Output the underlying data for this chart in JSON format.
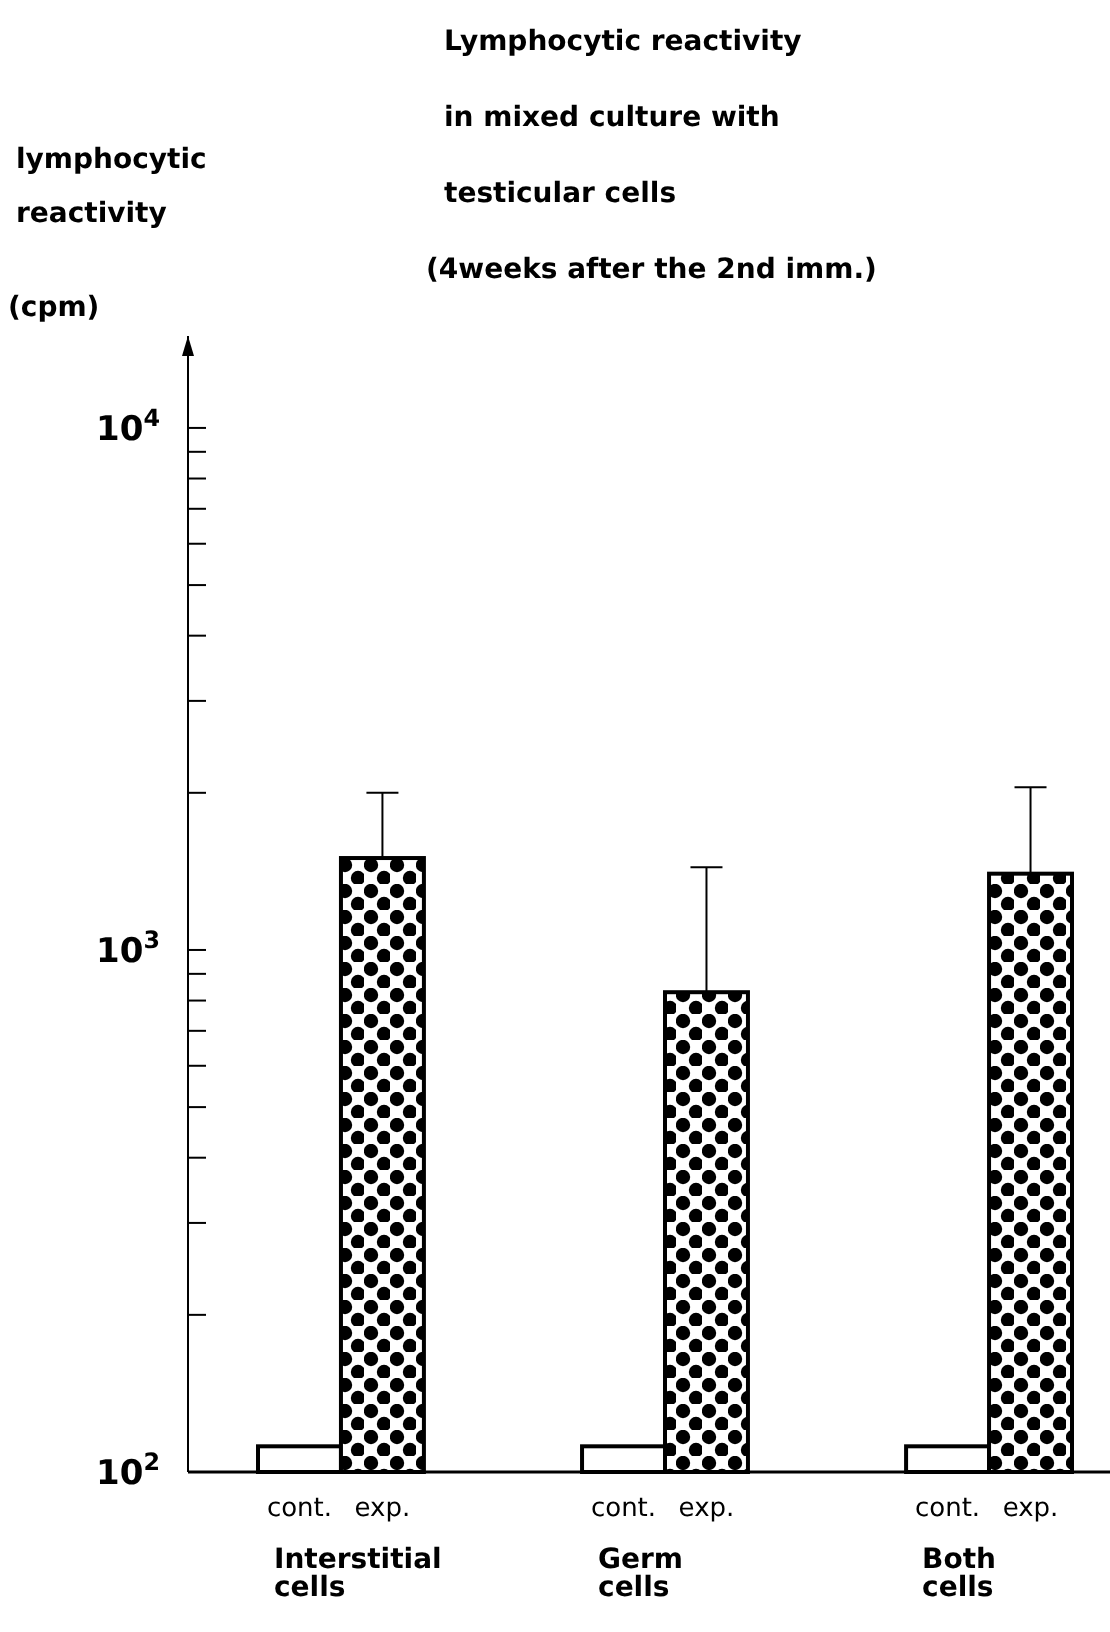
{
  "chart_data": {
    "type": "bar",
    "title": "Lymphocytic reactivity\nin mixed culture with\ntesticular cells\n(4weeks after the 2nd imm.)",
    "ylabel": "lymphocytic\nreactivity\n(cpm)",
    "categories": [
      "Interstitial\ncells",
      "Germ\ncells",
      "Both\ncells"
    ],
    "series": [
      {
        "name": "cont.",
        "color": "#ffffff",
        "values": [
          112,
          112,
          112
        ],
        "errors": [
          null,
          null,
          null
        ]
      },
      {
        "name": "exp.",
        "color": "#000000",
        "values": [
          1500,
          830,
          1400
        ],
        "errors": [
          [
            1500,
            2000
          ],
          [
            830,
            1440
          ],
          [
            1400,
            2050
          ]
        ]
      }
    ],
    "log": true,
    "ylim": [
      100,
      15000
    ],
    "yticks": [
      {
        "value": 100,
        "label": "10$^{2}$"
      },
      {
        "value": 200,
        "label": null
      },
      {
        "value": 300,
        "label": null
      },
      {
        "value": 400,
        "label": null
      },
      {
        "value": 500,
        "label": null
      },
      {
        "value": 600,
        "label": null
      },
      {
        "value": 700,
        "label": null
      },
      {
        "value": 800,
        "label": null
      },
      {
        "value": 900,
        "label": null
      },
      {
        "value": 1000,
        "label": "10$^{3}$"
      },
      {
        "value": 2000,
        "label": null
      },
      {
        "value": 3000,
        "label": null
      },
      {
        "value": 4000,
        "label": null
      },
      {
        "value": 5000,
        "label": null
      },
      {
        "value": 6000,
        "label": null
      },
      {
        "value": 7000,
        "label": null
      },
      {
        "value": 8000,
        "label": null
      },
      {
        "value": 9000,
        "label": null
      },
      {
        "value": 10000,
        "label": "10$^{4}$"
      }
    ],
    "grid": false
  }
}
